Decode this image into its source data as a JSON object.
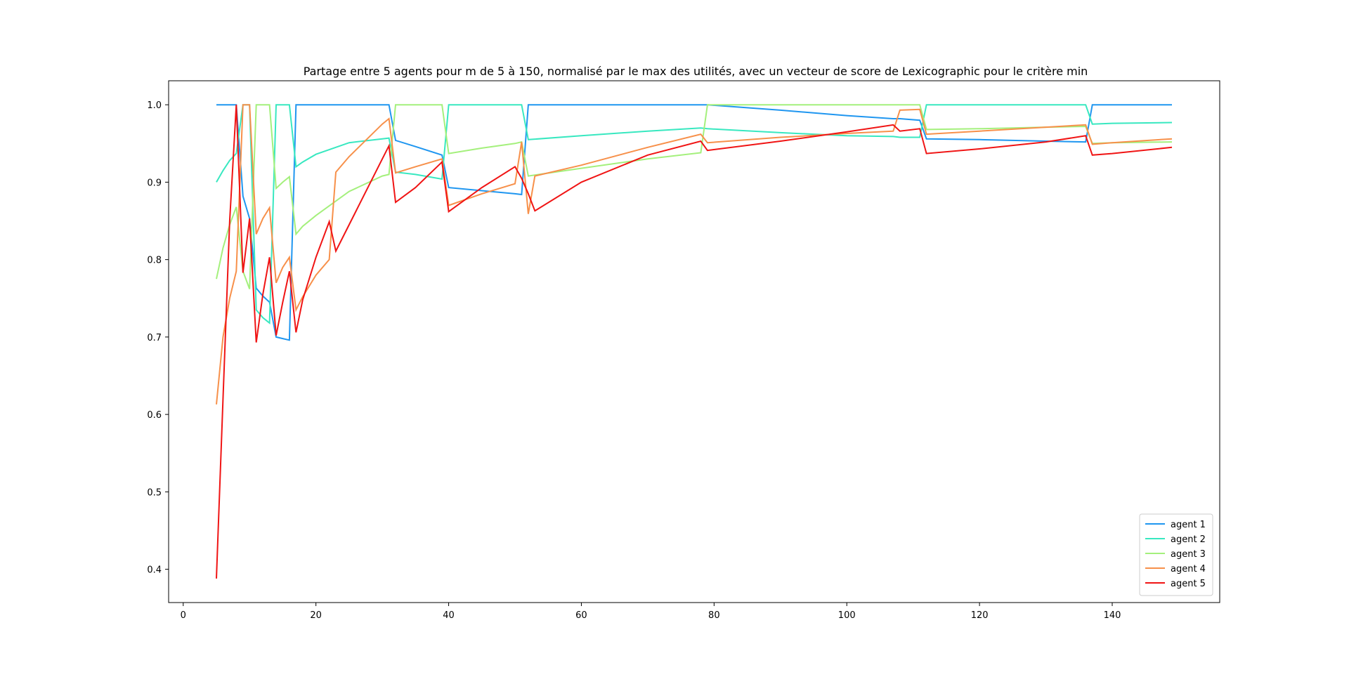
{
  "chart_data": {
    "type": "line",
    "title": "Partage entre 5 agents pour m de 5 à 150, normalisé par le max des utilités, avec un vecteur de score de Lexicographic pour le critère min",
    "xlabel": "",
    "ylabel": "",
    "xlim": [
      -2.2,
      156.2
    ],
    "ylim": [
      0.357,
      1.031
    ],
    "xticks": [
      0,
      20,
      40,
      60,
      80,
      100,
      120,
      140
    ],
    "yticks": [
      0.4,
      0.5,
      0.6,
      0.7,
      0.8,
      0.9,
      1.0
    ],
    "xtick_labels": [
      "0",
      "20",
      "40",
      "60",
      "80",
      "100",
      "120",
      "140"
    ],
    "ytick_labels": [
      "0.4",
      "0.5",
      "0.6",
      "0.7",
      "0.8",
      "0.9",
      "1.0"
    ],
    "grid": false,
    "legend_position": "lower-right",
    "series": [
      {
        "name": "agent 1",
        "color": "#1f96f0",
        "x": [
          5,
          6,
          7,
          8,
          9,
          10,
          11,
          12,
          13,
          14,
          15,
          16,
          17,
          18,
          20,
          25,
          30,
          31,
          32,
          35,
          39,
          40,
          45,
          50,
          51,
          52,
          60,
          70,
          78,
          79,
          90,
          100,
          107,
          108,
          111,
          112,
          120,
          130,
          136,
          137,
          140,
          149
        ],
        "y": [
          1.0,
          1.0,
          1.0,
          1.0,
          0.882,
          0.853,
          0.763,
          0.753,
          0.745,
          0.7,
          0.698,
          0.696,
          1.0,
          1.0,
          1.0,
          1.0,
          1.0,
          1.0,
          0.954,
          0.946,
          0.935,
          0.893,
          0.889,
          0.885,
          0.884,
          1.0,
          1.0,
          1.0,
          1.0,
          1.0,
          0.993,
          0.986,
          0.982,
          0.982,
          0.98,
          0.956,
          0.955,
          0.953,
          0.952,
          1.0,
          1.0,
          1.0
        ]
      },
      {
        "name": "agent 2",
        "color": "#38e8c0",
        "x": [
          5,
          6,
          7,
          8,
          9,
          10,
          11,
          12,
          13,
          14,
          15,
          16,
          17,
          18,
          20,
          25,
          30,
          31,
          32,
          35,
          39,
          40,
          45,
          50,
          51,
          52,
          60,
          70,
          78,
          79,
          90,
          100,
          107,
          108,
          111,
          112,
          120,
          130,
          136,
          137,
          140,
          149
        ],
        "y": [
          0.9,
          0.915,
          0.928,
          0.937,
          1.0,
          1.0,
          0.735,
          0.725,
          0.718,
          1.0,
          1.0,
          1.0,
          0.92,
          0.926,
          0.936,
          0.951,
          0.956,
          0.957,
          0.913,
          0.91,
          0.904,
          1.0,
          1.0,
          1.0,
          1.0,
          0.955,
          0.96,
          0.966,
          0.97,
          0.969,
          0.964,
          0.96,
          0.959,
          0.958,
          0.958,
          1.0,
          1.0,
          1.0,
          1.0,
          0.975,
          0.976,
          0.977
        ]
      },
      {
        "name": "agent 3",
        "color": "#a4f07c",
        "x": [
          5,
          6,
          7,
          8,
          9,
          10,
          11,
          12,
          13,
          14,
          15,
          16,
          17,
          18,
          20,
          25,
          30,
          31,
          32,
          35,
          39,
          40,
          45,
          50,
          51,
          52,
          60,
          70,
          78,
          79,
          90,
          100,
          107,
          108,
          111,
          112,
          120,
          130,
          136,
          137,
          140,
          149
        ],
        "y": [
          0.775,
          0.815,
          0.845,
          0.868,
          0.785,
          0.762,
          1.0,
          1.0,
          1.0,
          0.892,
          0.9,
          0.907,
          0.833,
          0.843,
          0.857,
          0.888,
          0.908,
          0.91,
          1.0,
          1.0,
          1.0,
          0.937,
          0.944,
          0.95,
          0.952,
          0.908,
          0.918,
          0.93,
          0.938,
          1.0,
          1.0,
          1.0,
          1.0,
          1.0,
          1.0,
          0.968,
          0.969,
          0.971,
          0.972,
          0.95,
          0.951,
          0.952
        ]
      },
      {
        "name": "agent 4",
        "color": "#f7904a",
        "x": [
          5,
          6,
          7,
          8,
          9,
          10,
          11,
          12,
          13,
          14,
          15,
          16,
          17,
          18,
          20,
          22,
          23,
          25,
          30,
          31,
          32,
          35,
          39,
          40,
          45,
          50,
          51,
          52,
          53,
          60,
          70,
          78,
          79,
          90,
          100,
          107,
          108,
          111,
          112,
          120,
          130,
          136,
          137,
          140,
          149
        ],
        "y": [
          0.613,
          0.7,
          0.75,
          0.785,
          1.0,
          1.0,
          0.833,
          0.853,
          0.867,
          0.77,
          0.79,
          0.803,
          0.735,
          0.752,
          0.78,
          0.8,
          0.913,
          0.933,
          0.975,
          0.982,
          0.912,
          0.92,
          0.93,
          0.87,
          0.885,
          0.898,
          0.952,
          0.859,
          0.908,
          0.922,
          0.945,
          0.962,
          0.951,
          0.958,
          0.963,
          0.966,
          0.993,
          0.994,
          0.962,
          0.966,
          0.971,
          0.974,
          0.949,
          0.951,
          0.956
        ]
      },
      {
        "name": "agent 5",
        "color": "#f01414",
        "x": [
          5,
          6,
          7,
          8,
          9,
          10,
          11,
          12,
          13,
          14,
          15,
          16,
          17,
          18,
          20,
          22,
          23,
          25,
          30,
          31,
          32,
          35,
          39,
          40,
          45,
          50,
          51,
          52,
          53,
          60,
          70,
          78,
          79,
          90,
          100,
          107,
          108,
          111,
          112,
          120,
          130,
          136,
          137,
          140,
          149
        ],
        "y": [
          0.388,
          0.62,
          0.85,
          1.0,
          0.783,
          0.853,
          0.693,
          0.755,
          0.803,
          0.702,
          0.745,
          0.785,
          0.706,
          0.748,
          0.803,
          0.849,
          0.811,
          0.845,
          0.93,
          0.947,
          0.874,
          0.893,
          0.926,
          0.862,
          0.893,
          0.92,
          0.905,
          0.885,
          0.863,
          0.9,
          0.935,
          0.953,
          0.941,
          0.953,
          0.965,
          0.974,
          0.966,
          0.969,
          0.937,
          0.943,
          0.952,
          0.96,
          0.935,
          0.937,
          0.945
        ]
      }
    ]
  }
}
